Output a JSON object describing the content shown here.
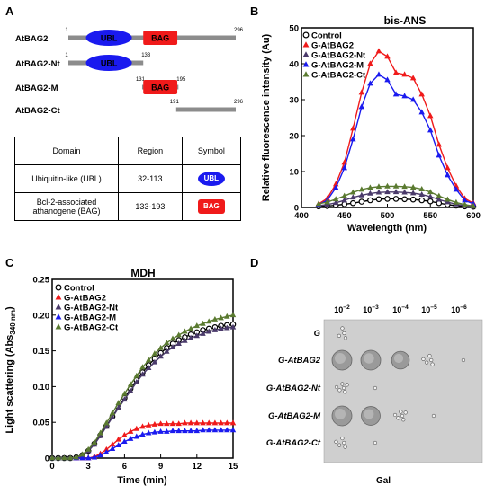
{
  "panels": {
    "a": "A",
    "b": "B",
    "c": "C",
    "d": "D"
  },
  "constructs": [
    {
      "name": "AtBAG2",
      "start": 1,
      "end": 296,
      "start_label": "1",
      "end_label": "296",
      "ubl": true,
      "bag": true
    },
    {
      "name": "AtBAG2-Nt",
      "start": 1,
      "end": 133,
      "start_label": "1",
      "end_label": "133",
      "ubl": true,
      "bag": false
    },
    {
      "name": "AtBAG2-M",
      "start": 131,
      "end": 195,
      "start_label": "131",
      "end_label": "195",
      "ubl": false,
      "bag": true
    },
    {
      "name": "AtBAG2-Ct",
      "start": 191,
      "end": 296,
      "start_label": "191",
      "end_label": "296",
      "ubl": false,
      "bag": false
    }
  ],
  "domain_labels": {
    "ubl": "UBL",
    "bag": "BAG"
  },
  "domain_table": {
    "headers": [
      "Domain",
      "Region",
      "Symbol"
    ],
    "rows": [
      {
        "domain": "Ubiquitin-like (UBL)",
        "region": "32-113",
        "symbol": "UBL"
      },
      {
        "domain": "Bcl-2-associated athanogene (BAG)",
        "region": "133-193",
        "symbol": "BAG"
      }
    ]
  },
  "colors": {
    "ubl": "#1a1aef",
    "bag": "#f01a1a",
    "bar": "#8c8c8c",
    "control": "#000000",
    "atbag2": "#f01a1a",
    "nt": "#4a3a6a",
    "m": "#1a1aef",
    "ct": "#5a7a30"
  },
  "chart_data": [
    {
      "type": "line",
      "title": "bis-ANS",
      "xlabel": "Wavelength (nm)",
      "ylabel": "Relative fluorescence intensity (Au)",
      "xlim": [
        400,
        600
      ],
      "ylim": [
        0,
        50
      ],
      "xticks": [
        400,
        450,
        500,
        550,
        600
      ],
      "yticks": [
        0,
        10,
        20,
        30,
        40,
        50
      ],
      "xtick_labels": [
        "400",
        "450",
        "500",
        "550",
        "600"
      ],
      "ytick_labels": [
        "0",
        "10",
        "20",
        "30",
        "40",
        "50"
      ],
      "legend_position": "top-left",
      "x": [
        420,
        430,
        440,
        450,
        460,
        470,
        480,
        490,
        500,
        510,
        520,
        530,
        540,
        550,
        560,
        570,
        580,
        590,
        600
      ],
      "series": [
        {
          "name": "Control",
          "marker": "circle-open",
          "values": [
            0.3,
            0.4,
            0.6,
            0.9,
            1.2,
            1.6,
            2.0,
            2.3,
            2.4,
            2.4,
            2.3,
            2.2,
            2.0,
            1.7,
            1.2,
            0.8,
            0.5,
            0.3,
            0.2
          ]
        },
        {
          "name": "G-AtBAG2",
          "marker": "triangle",
          "values": [
            1.0,
            2.5,
            6.5,
            12.5,
            22,
            32,
            40,
            43.5,
            42,
            37.5,
            37,
            36,
            31.5,
            25.5,
            17.5,
            11,
            6,
            2.5,
            1.2
          ]
        },
        {
          "name": "G-AtBAG2-Nt",
          "marker": "triangle",
          "values": [
            0.5,
            0.8,
            1.3,
            2.0,
            2.8,
            3.4,
            3.9,
            4.2,
            4.3,
            4.3,
            4.2,
            4.0,
            3.6,
            3.0,
            2.2,
            1.5,
            0.9,
            0.5,
            0.3
          ]
        },
        {
          "name": "G-AtBAG2-M",
          "marker": "triangle",
          "values": [
            0.8,
            2.0,
            5.5,
            11,
            19,
            28,
            34.5,
            37,
            35.5,
            31.5,
            31,
            30,
            26.5,
            21.5,
            14.5,
            9,
            5,
            2.0,
            1.0
          ]
        },
        {
          "name": "G-AtBAG2-Ct",
          "marker": "triangle",
          "values": [
            1.0,
            1.5,
            2.3,
            3.2,
            4.2,
            5.0,
            5.5,
            5.8,
            5.9,
            5.9,
            5.8,
            5.6,
            5.1,
            4.3,
            3.2,
            2.2,
            1.4,
            0.8,
            0.4
          ]
        }
      ]
    },
    {
      "type": "line",
      "title": "MDH",
      "xlabel": "Time (min)",
      "ylabel_main": "Light scattering (Abs",
      "ylabel_sub": "340 nm",
      "ylabel_end": ")",
      "xlim": [
        0,
        15
      ],
      "ylim": [
        0,
        0.25
      ],
      "xticks": [
        0,
        3,
        6,
        9,
        12,
        15
      ],
      "yticks": [
        0,
        0.05,
        0.1,
        0.15,
        0.2,
        0.25
      ],
      "xtick_labels": [
        "0",
        "3",
        "6",
        "9",
        "12",
        "15"
      ],
      "ytick_labels": [
        "0",
        "0.05",
        "0.10",
        "0.15",
        "0.20",
        "0.25"
      ],
      "legend_position": "top-left",
      "x": [
        0,
        0.5,
        1,
        1.5,
        2,
        2.5,
        3,
        3.5,
        4,
        4.5,
        5,
        5.5,
        6,
        6.5,
        7,
        7.5,
        8,
        8.5,
        9,
        9.5,
        10,
        10.5,
        11,
        11.5,
        12,
        12.5,
        13,
        13.5,
        14,
        14.5,
        15
      ],
      "series": [
        {
          "name": "Control",
          "marker": "circle-open",
          "values": [
            0,
            0,
            0,
            0,
            0.001,
            0.004,
            0.01,
            0.02,
            0.032,
            0.045,
            0.058,
            0.071,
            0.084,
            0.097,
            0.109,
            0.12,
            0.13,
            0.139,
            0.147,
            0.154,
            0.16,
            0.165,
            0.169,
            0.173,
            0.176,
            0.179,
            0.181,
            0.183,
            0.185,
            0.186,
            0.187
          ]
        },
        {
          "name": "G-AtBAG2",
          "marker": "triangle",
          "values": [
            0,
            0,
            0,
            0,
            0,
            0,
            0,
            0.002,
            0.006,
            0.012,
            0.019,
            0.026,
            0.032,
            0.037,
            0.041,
            0.044,
            0.046,
            0.047,
            0.048,
            0.048,
            0.048,
            0.048,
            0.049,
            0.049,
            0.049,
            0.049,
            0.049,
            0.049,
            0.049,
            0.049,
            0.049
          ]
        },
        {
          "name": "G-AtBAG2-Nt",
          "marker": "triangle",
          "values": [
            0,
            0,
            0,
            0,
            0.001,
            0.004,
            0.01,
            0.019,
            0.031,
            0.044,
            0.057,
            0.07,
            0.082,
            0.094,
            0.106,
            0.117,
            0.126,
            0.134,
            0.142,
            0.149,
            0.155,
            0.16,
            0.164,
            0.168,
            0.171,
            0.174,
            0.177,
            0.179,
            0.181,
            0.182,
            0.183
          ]
        },
        {
          "name": "G-AtBAG2-M",
          "marker": "triangle",
          "values": [
            0,
            0,
            0,
            0,
            0,
            0,
            0,
            0.001,
            0.004,
            0.008,
            0.013,
            0.018,
            0.023,
            0.027,
            0.03,
            0.033,
            0.035,
            0.036,
            0.037,
            0.037,
            0.038,
            0.038,
            0.038,
            0.038,
            0.038,
            0.039,
            0.039,
            0.039,
            0.039,
            0.039,
            0.039
          ]
        },
        {
          "name": "G-AtBAG2-Ct",
          "marker": "triangle",
          "values": [
            0,
            0,
            0,
            0,
            0.001,
            0.005,
            0.012,
            0.022,
            0.035,
            0.049,
            0.063,
            0.077,
            0.09,
            0.103,
            0.115,
            0.127,
            0.137,
            0.146,
            0.154,
            0.161,
            0.167,
            0.172,
            0.177,
            0.181,
            0.185,
            0.188,
            0.191,
            0.194,
            0.196,
            0.198,
            0.2
          ]
        }
      ]
    }
  ],
  "spot_assay": {
    "dilutions": [
      "10",
      "10",
      "10",
      "10",
      "10"
    ],
    "exponents": [
      "−2",
      "−3",
      "−4",
      "−5",
      "−6"
    ],
    "strains": [
      "G",
      "G-AtBAG2",
      "G-AtBAG2-Nt",
      "G-AtBAG2-M",
      "G-AtBAG2-Ct"
    ],
    "medium": "Gal",
    "growth": [
      [
        0.25,
        0,
        0,
        0,
        0
      ],
      [
        1,
        0.95,
        0.85,
        0.35,
        0.08
      ],
      [
        0.4,
        0.05,
        0,
        0,
        0
      ],
      [
        1,
        0.9,
        0.45,
        0.03,
        0
      ],
      [
        0.35,
        0.05,
        0,
        0,
        0
      ]
    ]
  }
}
